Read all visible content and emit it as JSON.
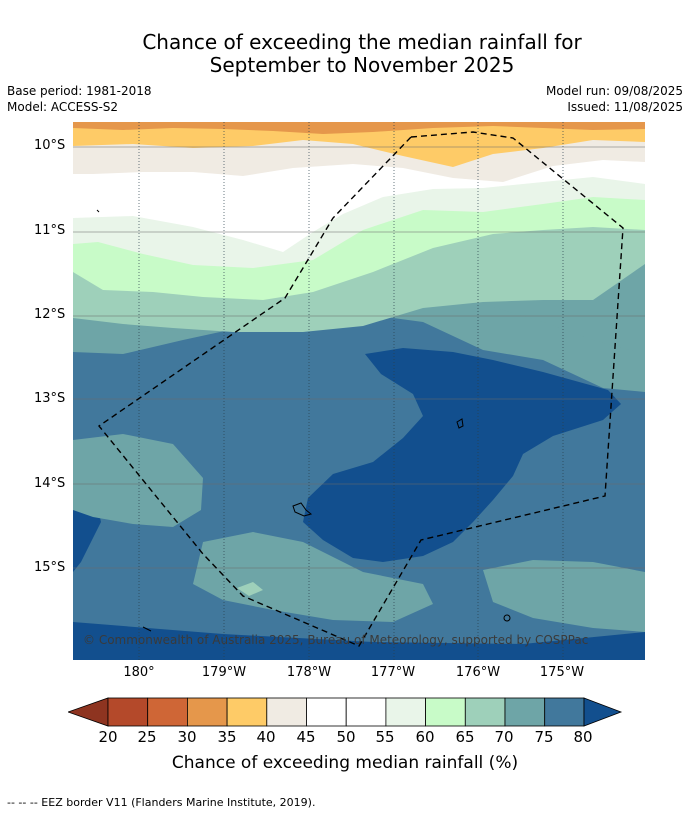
{
  "title": {
    "line1": "Chance of exceeding the median rainfall for",
    "line2": "September to November 2025"
  },
  "meta": {
    "base_period": "Base period: 1981-2018",
    "model": "Model: ACCESS-S2",
    "model_run": "Model run: 09/08/2025",
    "issued": "Issued: 11/08/2025"
  },
  "map": {
    "lat_labels": [
      "10°S",
      "11°S",
      "12°S",
      "13°S",
      "14°S",
      "15°S"
    ],
    "lon_labels": [
      "180°",
      "179°W",
      "178°W",
      "177°W",
      "176°W",
      "175°W"
    ],
    "copyright": "© Commonwealth of Australia 2025, Bureau of Meteorology, supported by COSPPac",
    "boundary": "EEZ border (dashed)",
    "sea_color": "#41789c"
  },
  "colorbar": {
    "ticks": [
      "20",
      "25",
      "30",
      "35",
      "40",
      "45",
      "50",
      "55",
      "60",
      "65",
      "70",
      "75",
      "80"
    ],
    "label": "Chance of exceeding median rainfall (%)",
    "colors": [
      "#8e3420",
      "#b4492a",
      "#cf6636",
      "#e5974b",
      "#fecb67",
      "#f0ebe3",
      "#ffffff",
      "#ffffff",
      "#e9f5e9",
      "#c8fbc8",
      "#9ed0ba",
      "#6ea5a7",
      "#41789c",
      "#124f8e"
    ]
  },
  "footnote": "--  --  -- EEZ border V11 (Flanders Marine Institute, 2019)."
}
